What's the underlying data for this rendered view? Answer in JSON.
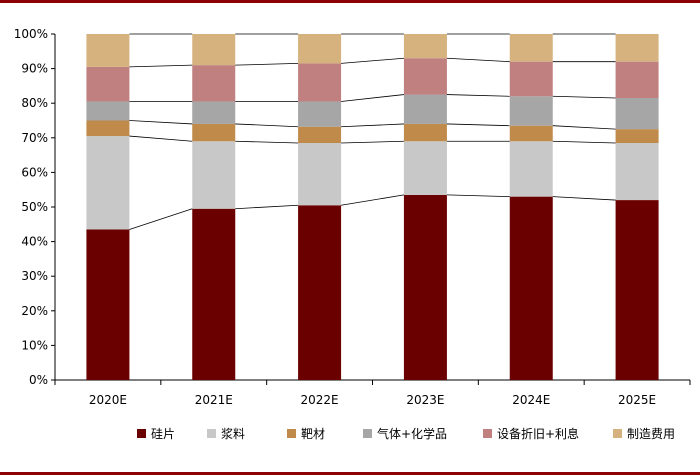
{
  "chart_data": {
    "type": "bar",
    "stacked": true,
    "percent": true,
    "categories": [
      "2020E",
      "2021E",
      "2022E",
      "2023E",
      "2024E",
      "2025E"
    ],
    "ylim": [
      0,
      100
    ],
    "y_ticks": [
      "0%",
      "10%",
      "20%",
      "30%",
      "40%",
      "50%",
      "60%",
      "70%",
      "80%",
      "90%",
      "100%"
    ],
    "series": [
      {
        "name": "硅片",
        "color": "#6b0000",
        "values": [
          43.5,
          49.5,
          50.5,
          53.5,
          53.0,
          52.0
        ]
      },
      {
        "name": "浆料",
        "color": "#c8c8c8",
        "values": [
          27.0,
          19.5,
          18.0,
          15.5,
          16.0,
          16.5
        ]
      },
      {
        "name": "靶材",
        "color": "#c08a4a",
        "values": [
          4.5,
          5.0,
          4.7,
          5.0,
          4.5,
          4.0
        ]
      },
      {
        "name": "气体+化学品",
        "color": "#a6a6a6",
        "values": [
          5.5,
          6.5,
          7.3,
          8.5,
          8.5,
          9.0
        ]
      },
      {
        "name": "设备折旧+利息",
        "color": "#c08080",
        "values": [
          10.0,
          10.5,
          11.0,
          10.5,
          10.0,
          10.5
        ]
      },
      {
        "name": "制造费用",
        "color": "#d6b27e",
        "values": [
          9.5,
          9.0,
          8.5,
          7.0,
          8.0,
          8.0
        ]
      }
    ],
    "legend_position": "bottom",
    "connector_lines": true,
    "grid": false
  }
}
